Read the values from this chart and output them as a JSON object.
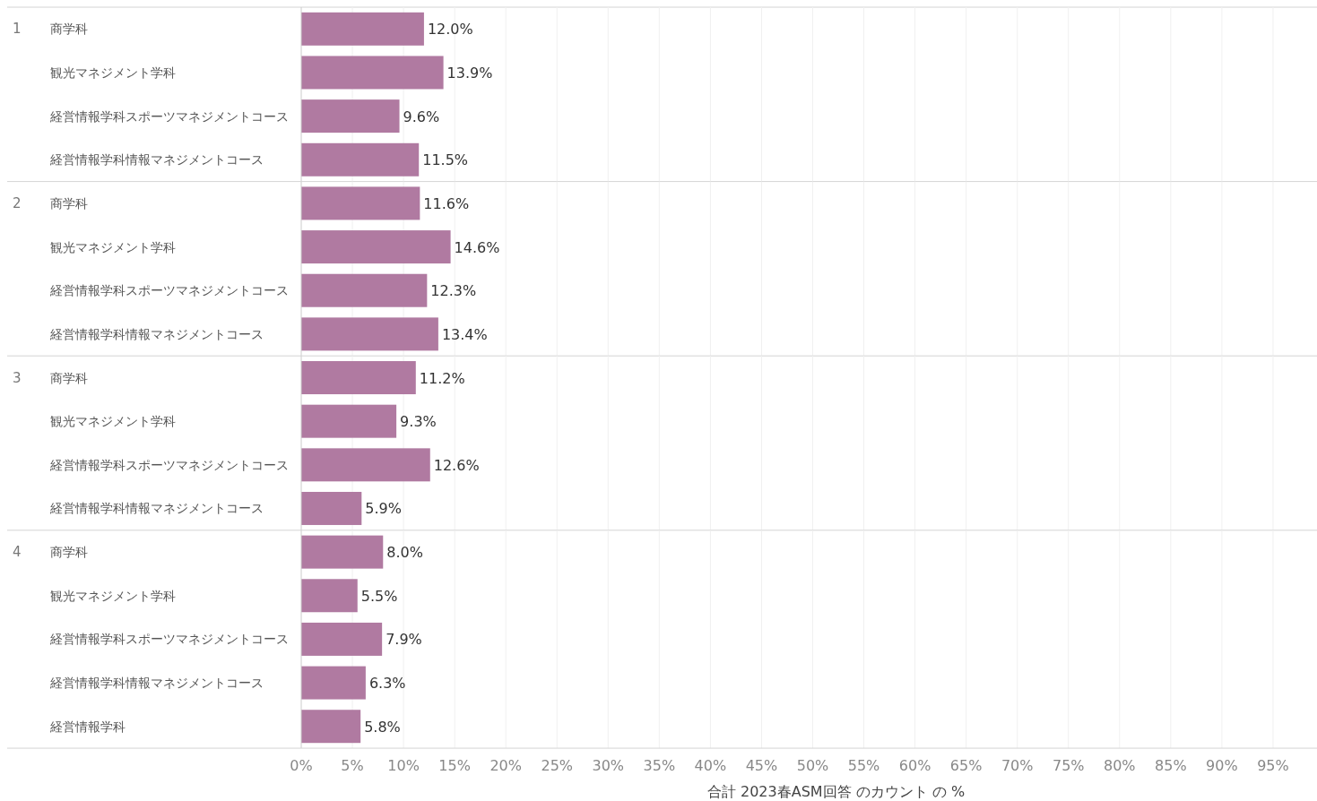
{
  "chart_data": [
    {
      "type": "bar",
      "orientation": "horizontal",
      "title": "1",
      "categories": [
        "商学科",
        "観光マネジメント学科",
        "経営情報学科スポーツマネジメントコース",
        "経営情報学科情報マネジメントコース"
      ],
      "values": [
        12.0,
        13.9,
        9.6,
        11.5
      ],
      "value_labels": [
        "12.0%",
        "13.9%",
        "9.6%",
        "11.5%"
      ],
      "color": "#b07aa1",
      "xlim": [
        0,
        99.3
      ],
      "xticks": [
        {
          "value": 0,
          "label": null
        },
        {
          "value": 5,
          "label": null
        },
        {
          "value": 10,
          "label": null
        },
        {
          "value": 15,
          "label": null
        },
        {
          "value": 20,
          "label": null
        },
        {
          "value": 25,
          "label": null
        },
        {
          "value": 30,
          "label": null
        },
        {
          "value": 35,
          "label": null
        },
        {
          "value": 40,
          "label": null
        },
        {
          "value": 45,
          "label": null
        },
        {
          "value": 50,
          "label": null
        },
        {
          "value": 55,
          "label": null
        },
        {
          "value": 60,
          "label": null
        },
        {
          "value": 65,
          "label": null
        },
        {
          "value": 70,
          "label": null
        },
        {
          "value": 75,
          "label": null
        },
        {
          "value": 80,
          "label": null
        },
        {
          "value": 85,
          "label": null
        },
        {
          "value": 90,
          "label": null
        },
        {
          "value": 95,
          "label": null
        }
      ],
      "grid": "x",
      "tick_labels": "y"
    },
    {
      "type": "bar",
      "orientation": "horizontal",
      "title": "2",
      "categories": [
        "商学科",
        "観光マネジメント学科",
        "経営情報学科スポーツマネジメントコース",
        "経営情報学科情報マネジメントコース"
      ],
      "values": [
        11.6,
        14.6,
        12.3,
        13.4
      ],
      "value_labels": [
        "11.6%",
        "14.6%",
        "12.3%",
        "13.4%"
      ],
      "color": "#b07aa1",
      "xlim": [
        0,
        99.3
      ],
      "xticks": [
        {
          "value": 0,
          "label": null
        },
        {
          "value": 5,
          "label": null
        },
        {
          "value": 10,
          "label": null
        },
        {
          "value": 15,
          "label": null
        },
        {
          "value": 20,
          "label": null
        },
        {
          "value": 25,
          "label": null
        },
        {
          "value": 30,
          "label": null
        },
        {
          "value": 35,
          "label": null
        },
        {
          "value": 40,
          "label": null
        },
        {
          "value": 45,
          "label": null
        },
        {
          "value": 50,
          "label": null
        },
        {
          "value": 55,
          "label": null
        },
        {
          "value": 60,
          "label": null
        },
        {
          "value": 65,
          "label": null
        },
        {
          "value": 70,
          "label": null
        },
        {
          "value": 75,
          "label": null
        },
        {
          "value": 80,
          "label": null
        },
        {
          "value": 85,
          "label": null
        },
        {
          "value": 90,
          "label": null
        },
        {
          "value": 95,
          "label": null
        }
      ],
      "grid": "x",
      "tick_labels": "y"
    },
    {
      "type": "bar",
      "orientation": "horizontal",
      "title": "3",
      "categories": [
        "商学科",
        "観光マネジメント学科",
        "経営情報学科スポーツマネジメントコース",
        "経営情報学科情報マネジメントコース"
      ],
      "values": [
        11.2,
        9.3,
        12.6,
        5.9
      ],
      "value_labels": [
        "11.2%",
        "9.3%",
        "12.6%",
        "5.9%"
      ],
      "color": "#b07aa1",
      "xlim": [
        0,
        99.3
      ],
      "xticks": [
        {
          "value": 0,
          "label": null
        },
        {
          "value": 5,
          "label": null
        },
        {
          "value": 10,
          "label": null
        },
        {
          "value": 15,
          "label": null
        },
        {
          "value": 20,
          "label": null
        },
        {
          "value": 25,
          "label": null
        },
        {
          "value": 30,
          "label": null
        },
        {
          "value": 35,
          "label": null
        },
        {
          "value": 40,
          "label": null
        },
        {
          "value": 45,
          "label": null
        },
        {
          "value": 50,
          "label": null
        },
        {
          "value": 55,
          "label": null
        },
        {
          "value": 60,
          "label": null
        },
        {
          "value": 65,
          "label": null
        },
        {
          "value": 70,
          "label": null
        },
        {
          "value": 75,
          "label": null
        },
        {
          "value": 80,
          "label": null
        },
        {
          "value": 85,
          "label": null
        },
        {
          "value": 90,
          "label": null
        },
        {
          "value": 95,
          "label": null
        }
      ],
      "grid": "x",
      "tick_labels": "y"
    },
    {
      "type": "bar",
      "orientation": "horizontal",
      "title": "4",
      "xlabel": "合計 2023春ASM回答 のカウント の %",
      "categories": [
        "商学科",
        "観光マネジメント学科",
        "経営情報学科スポーツマネジメントコース",
        "経営情報学科情報マネジメントコース",
        "経営情報学科"
      ],
      "values": [
        8.0,
        5.5,
        7.9,
        6.3,
        5.8
      ],
      "value_labels": [
        "8.0%",
        "5.5%",
        "7.9%",
        "6.3%",
        "5.8%"
      ],
      "color": "#b07aa1",
      "xlim": [
        0,
        99.3
      ],
      "xticks": [
        {
          "value": 0,
          "label": "0%"
        },
        {
          "value": 5,
          "label": "5%"
        },
        {
          "value": 10,
          "label": "10%"
        },
        {
          "value": 15,
          "label": "15%"
        },
        {
          "value": 20,
          "label": "20%"
        },
        {
          "value": 25,
          "label": "25%"
        },
        {
          "value": 30,
          "label": "30%"
        },
        {
          "value": 35,
          "label": "35%"
        },
        {
          "value": 40,
          "label": "40%"
        },
        {
          "value": 45,
          "label": "45%"
        },
        {
          "value": 50,
          "label": "50%"
        },
        {
          "value": 55,
          "label": "55%"
        },
        {
          "value": 60,
          "label": "60%"
        },
        {
          "value": 65,
          "label": "65%"
        },
        {
          "value": 70,
          "label": "70%"
        },
        {
          "value": 75,
          "label": "75%"
        },
        {
          "value": 80,
          "label": "80%"
        },
        {
          "value": 85,
          "label": "85%"
        },
        {
          "value": 90,
          "label": "90%"
        },
        {
          "value": 95,
          "label": "95%"
        }
      ],
      "grid": "x"
    }
  ]
}
